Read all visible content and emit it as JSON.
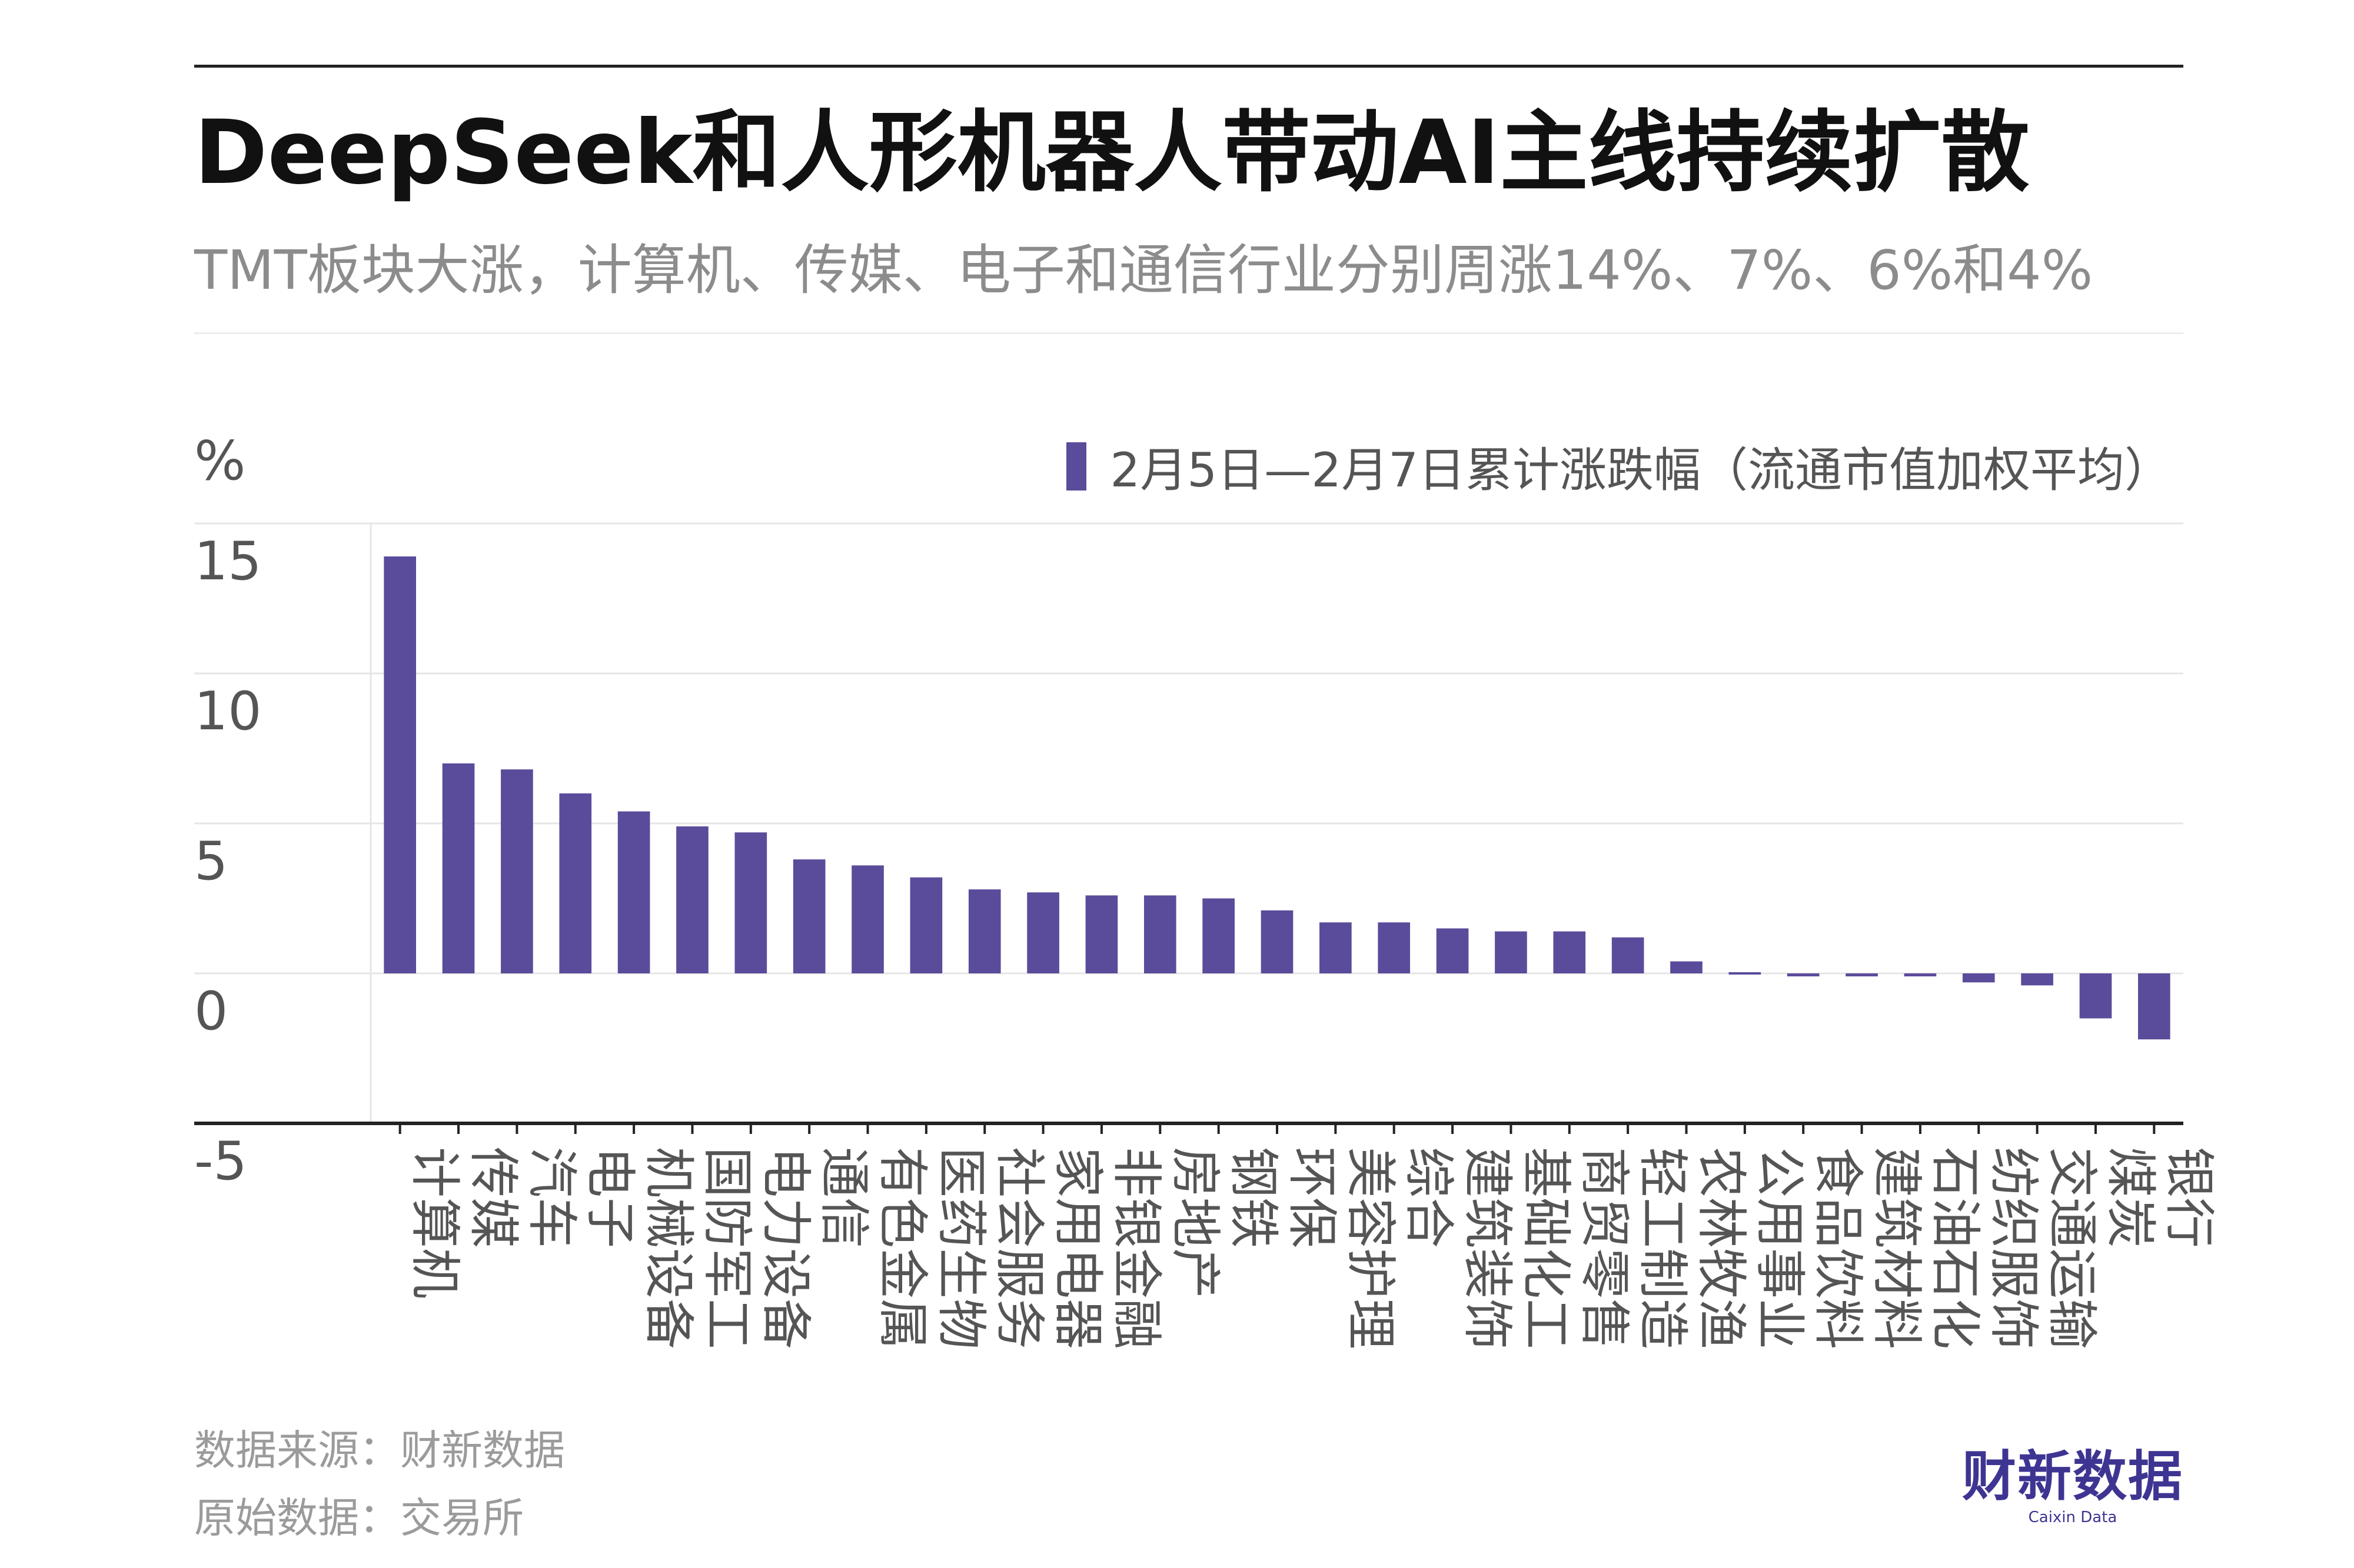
{
  "title": "DeepSeek和人形机器人带动AI主线持续扩散",
  "subtitle": "TMT板块大涨，计算机、传媒、电子和通信行业分别周涨14%、7%、6%和4%",
  "source_line_1": "数据来源：财新数据",
  "source_line_2": "原始数据：交易所",
  "brand": {
    "cn": "财新数据",
    "en": "Caixin Data"
  },
  "colors": {
    "bar": "#5b4b9b",
    "grid": "#e6e6e6",
    "axis": "#222222"
  },
  "chart_data": {
    "type": "bar",
    "title": "DeepSeek和人形机器人带动AI主线持续扩散",
    "unit_label": "%",
    "ylim": [
      -5,
      15
    ],
    "yticks": [
      "15",
      "10",
      "5",
      "0",
      "-5"
    ],
    "ytick_values": [
      15,
      10,
      5,
      0,
      -5
    ],
    "grid": true,
    "legend_position": "top-right",
    "series": [
      {
        "name": "2月5日—2月7日累计涨跌幅（流通市值加权平均）",
        "values": [
          13.9,
          7.0,
          6.8,
          6.0,
          5.4,
          4.9,
          4.7,
          3.8,
          3.6,
          3.2,
          2.8,
          2.7,
          2.6,
          2.6,
          2.5,
          2.1,
          1.7,
          1.7,
          1.5,
          1.4,
          1.4,
          1.2,
          0.4,
          0.0,
          -0.1,
          -0.1,
          -0.1,
          -0.3,
          -0.4,
          -1.5,
          -2.2
        ]
      }
    ],
    "categories": [
      "计算机",
      "传媒",
      "汽车",
      "电子",
      "机械设备",
      "国防军工",
      "电力设备",
      "通信",
      "有色金属",
      "医药生物",
      "社会服务",
      "家用电器",
      "非银金融",
      "房地产",
      "钢铁",
      "环保",
      "美容护理",
      "综合",
      "建筑装饰",
      "基础化工",
      "商贸零售",
      "轻工制造",
      "农林牧渔",
      "公用事业",
      "食品饮料",
      "建筑材料",
      "石油石化",
      "纺织服饰",
      "交通运输",
      "煤炭",
      "银行"
    ]
  }
}
